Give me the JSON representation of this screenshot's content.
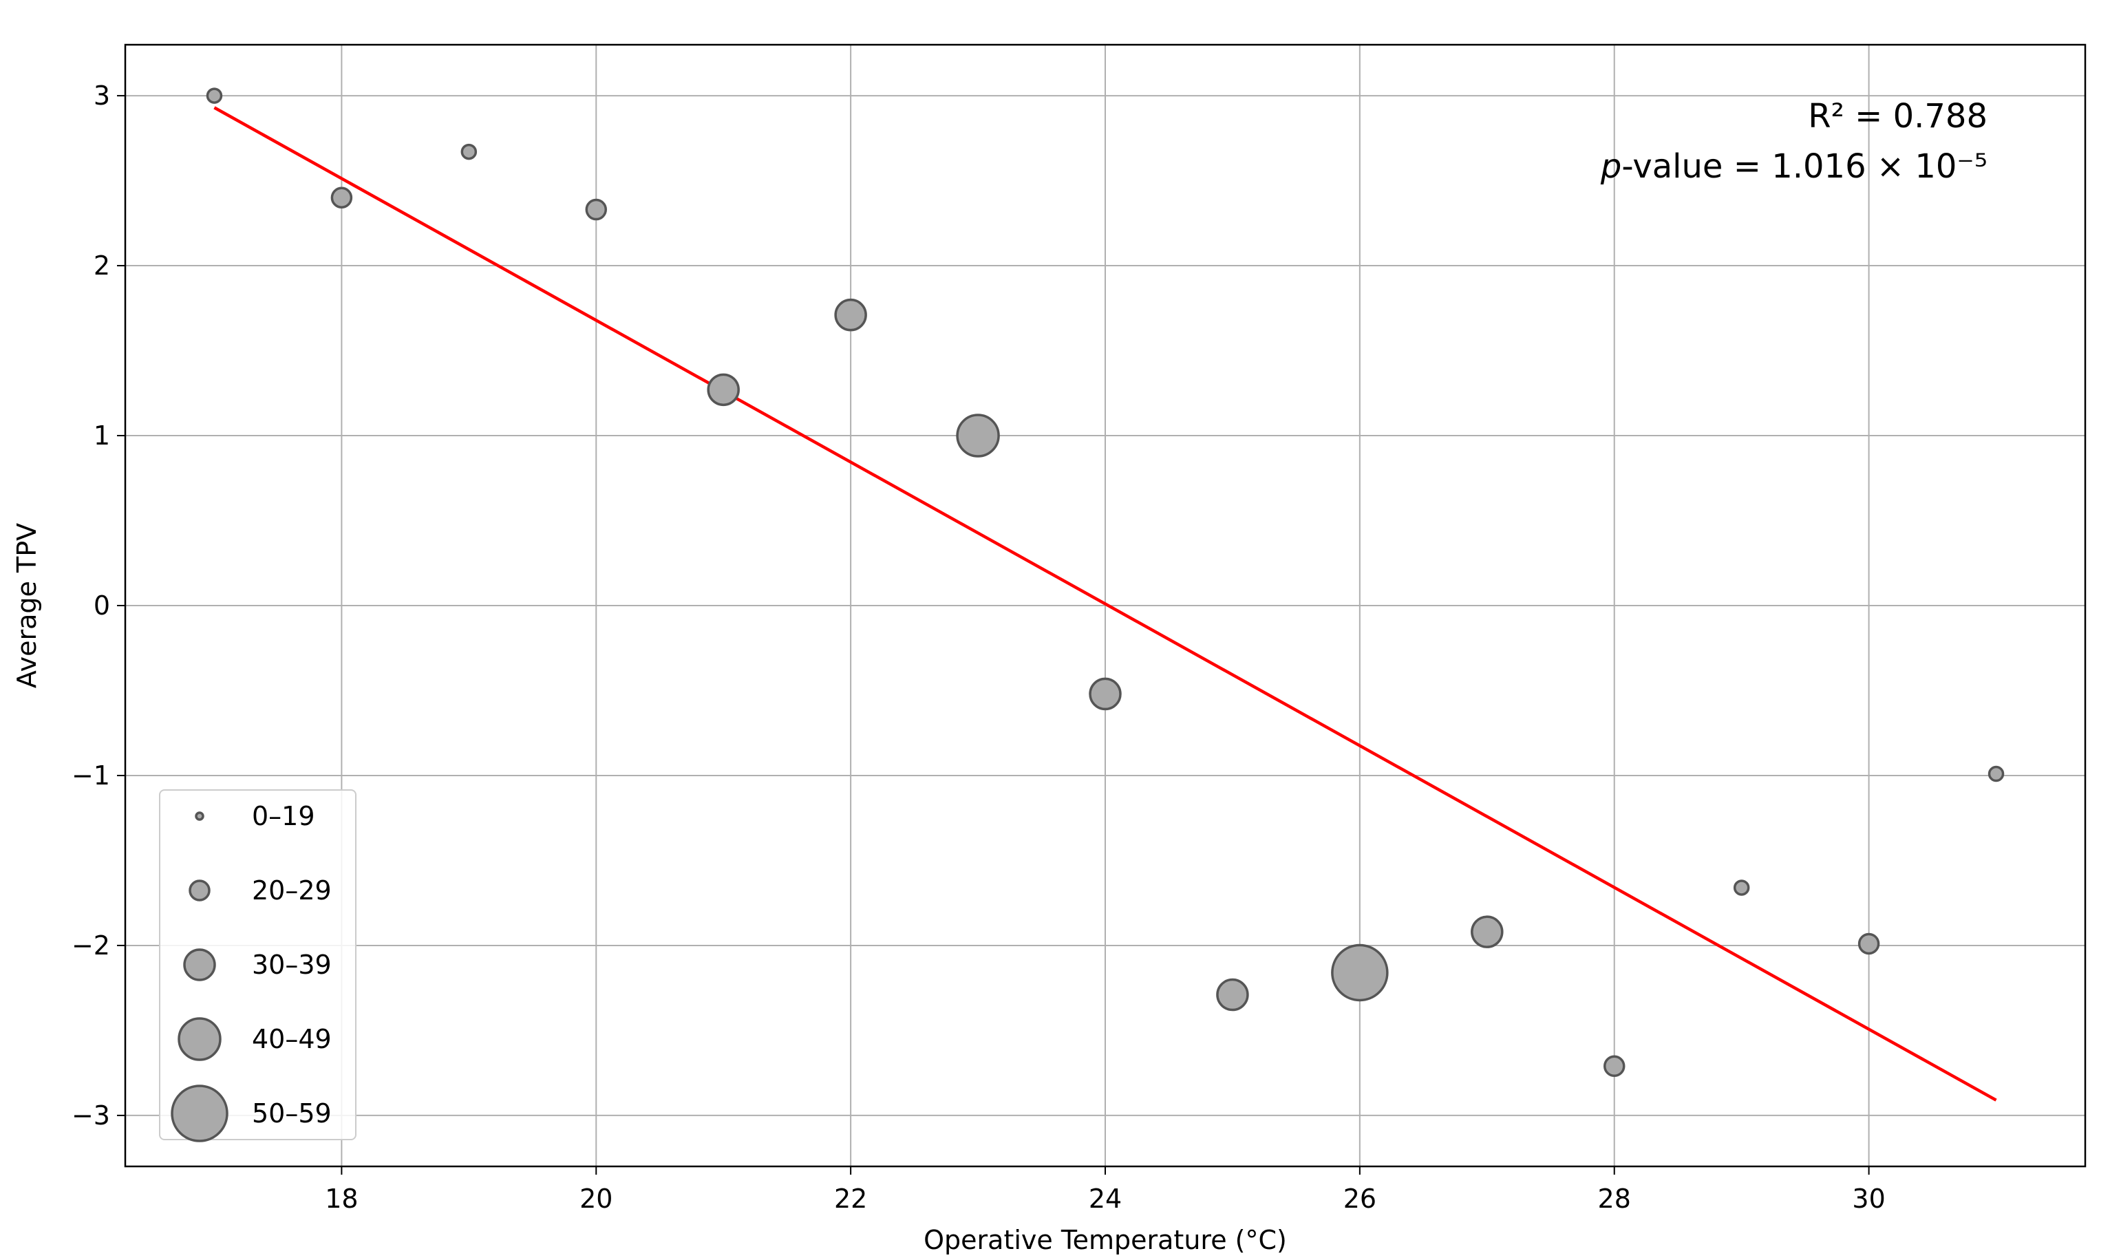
{
  "chart_data": {
    "type": "scatter",
    "title": "",
    "xlabel": "Operative Temperature (°C)",
    "ylabel": "Average TPV",
    "xlim": [
      16.3,
      31.7
    ],
    "ylim": [
      -3.3,
      3.3
    ],
    "xticks": [
      18,
      20,
      22,
      24,
      26,
      28,
      30
    ],
    "yticks": [
      -3,
      -2,
      -1,
      0,
      1,
      2,
      3
    ],
    "xtick_labels": [
      "18",
      "20",
      "22",
      "24",
      "26",
      "28",
      "30"
    ],
    "ytick_labels": [
      "−3",
      "−2",
      "−1",
      "0",
      "1",
      "2",
      "3"
    ],
    "grid": true,
    "points": [
      {
        "x": 17,
        "y": 3.0,
        "size_group": "0–19"
      },
      {
        "x": 18,
        "y": 2.4,
        "size_group": "20–29"
      },
      {
        "x": 19,
        "y": 2.67,
        "size_group": "0–19"
      },
      {
        "x": 20,
        "y": 2.33,
        "size_group": "20–29"
      },
      {
        "x": 21,
        "y": 1.27,
        "size_group": "30–39"
      },
      {
        "x": 22,
        "y": 1.71,
        "size_group": "30–39"
      },
      {
        "x": 23,
        "y": 1.0,
        "size_group": "40–49"
      },
      {
        "x": 24,
        "y": -0.52,
        "size_group": "30–39"
      },
      {
        "x": 25,
        "y": -2.29,
        "size_group": "30–39"
      },
      {
        "x": 26,
        "y": -2.16,
        "size_group": "50–59"
      },
      {
        "x": 27,
        "y": -1.92,
        "size_group": "30–39"
      },
      {
        "x": 28,
        "y": -2.71,
        "size_group": "20–29"
      },
      {
        "x": 29,
        "y": -1.66,
        "size_group": "0–19"
      },
      {
        "x": 30,
        "y": -1.99,
        "size_group": "20–29"
      },
      {
        "x": 31,
        "y": -0.99,
        "size_group": "0–19"
      }
    ],
    "regression_line": {
      "x": [
        17,
        31
      ],
      "y": [
        2.93,
        -2.91
      ],
      "color": "#ff0000"
    },
    "annotations": {
      "r_squared": "R² = 0.788",
      "p_value_italic": "p",
      "p_value_rest": "-value = 1.016 × 10⁻⁵"
    },
    "legend": {
      "placement": "lower-left",
      "entries": [
        {
          "label": "0–19",
          "group": "0–19"
        },
        {
          "label": "20–29",
          "group": "20–29"
        },
        {
          "label": "30–39",
          "group": "30–39"
        },
        {
          "label": "40–49",
          "group": "40–49"
        },
        {
          "label": "50–59",
          "group": "50–59"
        }
      ]
    },
    "marker_fill": "#aaaaaa",
    "marker_edge": "#555555"
  }
}
